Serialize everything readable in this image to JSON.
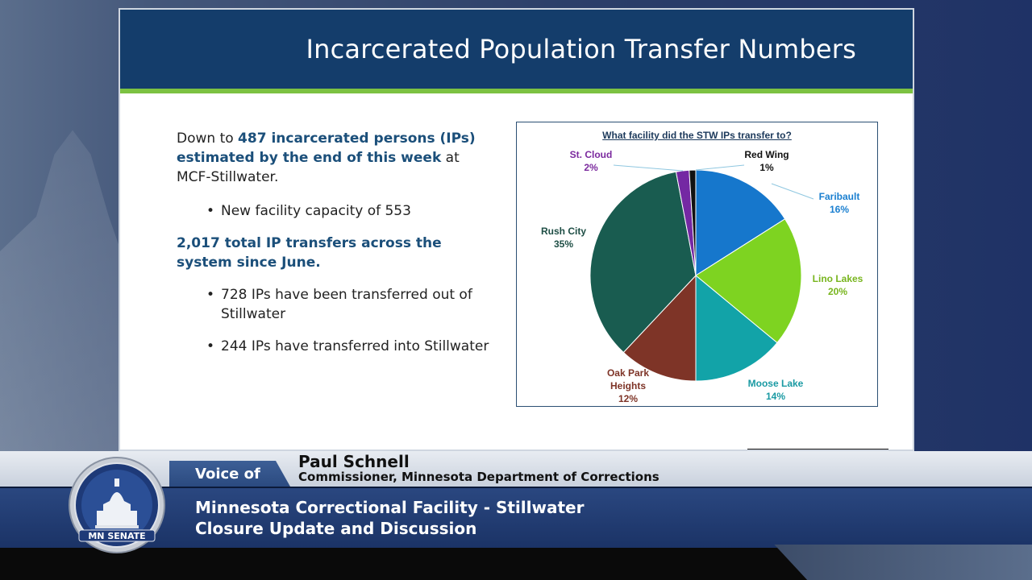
{
  "slide": {
    "title": "Incarcerated Population Transfer Numbers",
    "lead_prefix": "Down to ",
    "lead_highlight": "487 incarcerated persons (IPs) estimated by the end of this week",
    "lead_suffix": " at MCF-Stillwater.",
    "bullet_capacity": "New facility capacity of 553",
    "transfers_heading": "2,017 total IP transfers across the system since June.",
    "bullet_out": "728 IPs have been transferred out of Stillwater",
    "bullet_in": "244 IPs have transferred into Stillwater"
  },
  "chart_data": {
    "type": "pie",
    "title": "What facility did the STW IPs transfer to?",
    "slices": [
      {
        "name": "Faribault",
        "value": 16,
        "label": "16%",
        "color": "#1677cc",
        "text_color": "#1a7fd0"
      },
      {
        "name": "Lino Lakes",
        "value": 20,
        "label": "20%",
        "color": "#7ed321",
        "text_color": "#78b51e"
      },
      {
        "name": "Moose Lake",
        "value": 14,
        "label": "14%",
        "color": "#12a3a8",
        "text_color": "#1a9aa3"
      },
      {
        "name": "Oak Park Heights",
        "value": 12,
        "label": "12%",
        "color": "#7e3427",
        "text_color": "#7e3427"
      },
      {
        "name": "Rush City",
        "value": 35,
        "label": "35%",
        "color": "#195c50",
        "text_color": "#1e4e45"
      },
      {
        "name": "St. Cloud",
        "value": 2,
        "label": "2%",
        "color": "#7428a3",
        "text_color": "#7b2a9e"
      },
      {
        "name": "Red Wing",
        "value": 1,
        "label": "1%",
        "color": "#111111",
        "text_color": "#111111"
      }
    ]
  },
  "lower_third": {
    "voice_of": "Voice of",
    "speaker_name": "Paul Schnell",
    "speaker_role": "Commissioner, Minnesota Department of Corrections",
    "line1": "Minnesota Correctional Facility - Stillwater",
    "line2": "Closure Update and Discussion",
    "seal_text": "MN SENATE"
  }
}
